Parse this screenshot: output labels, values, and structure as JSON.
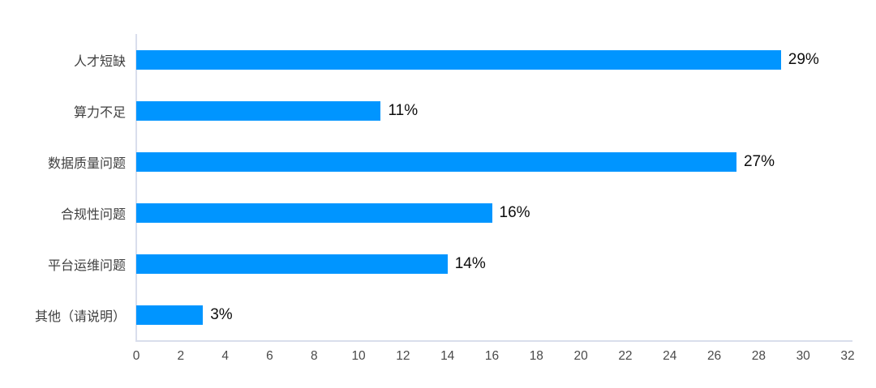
{
  "chart_data": {
    "type": "bar",
    "orientation": "horizontal",
    "title": "",
    "xlabel": "",
    "ylabel": "",
    "categories": [
      "人才短缺",
      "算力不足",
      "数据质量问题",
      "合规性问题",
      "平台运维问题",
      "其他（请说明）"
    ],
    "values": [
      29,
      11,
      27,
      16,
      14,
      3
    ],
    "value_labels": [
      "29%",
      "11%",
      "27%",
      "16%",
      "14%",
      "3%"
    ],
    "xlim": [
      0,
      32
    ],
    "x_ticks": [
      0,
      2,
      4,
      6,
      8,
      10,
      12,
      14,
      16,
      18,
      20,
      22,
      24,
      26,
      28,
      30,
      32
    ],
    "grid": false,
    "legend": false,
    "colors": {
      "bar": "#0095ff",
      "axis_line": "#d9deec",
      "category_label": "#3f3f3f",
      "value_label": "#0d0d0d",
      "tick_label": "#4a4a4a",
      "background": "#ffffff"
    }
  }
}
